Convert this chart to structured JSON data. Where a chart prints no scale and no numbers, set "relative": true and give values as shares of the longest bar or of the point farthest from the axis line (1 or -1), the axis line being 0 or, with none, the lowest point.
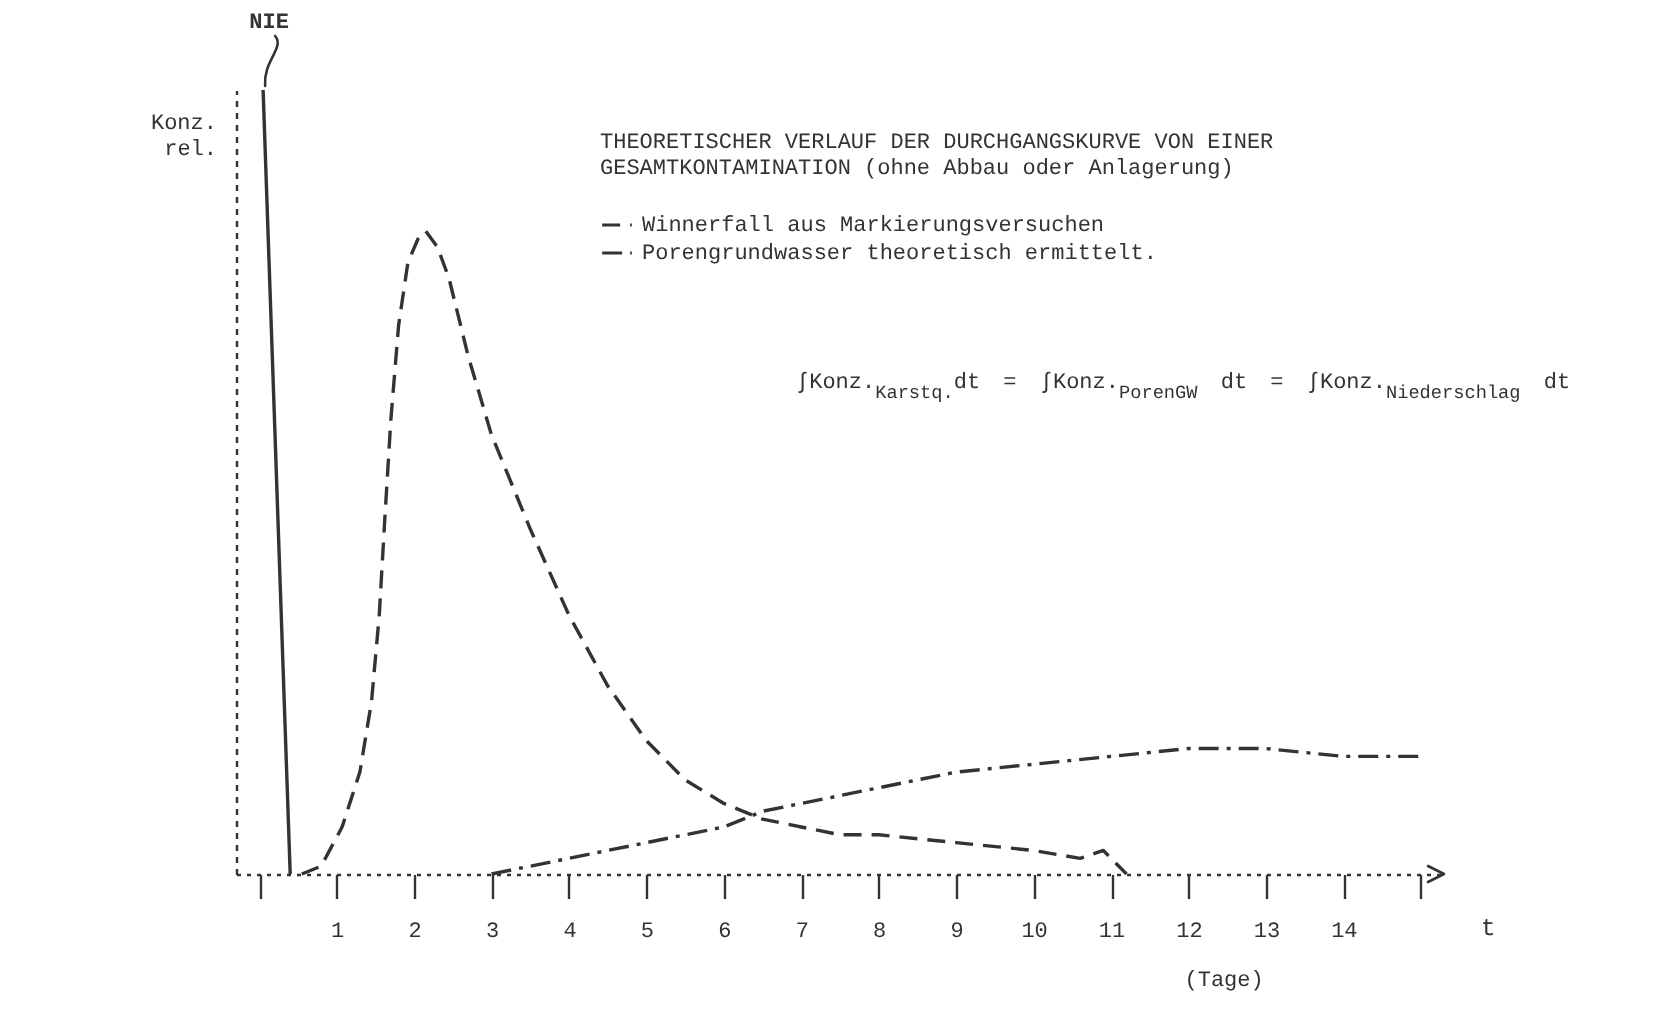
{
  "chart_data": {
    "type": "line",
    "relative": true,
    "title": "THEORETISCHER VERLAUF DER DURCHGANGSKURVE VON EINER GESAMTKONTAMINATION (ohne Abbau oder Anlagerung)",
    "xlabel": "t",
    "ylabel": "Konz. rel.",
    "annotations": [
      "∫Konz.$_{Karstq.}$dt = ∫Konz.$_{PorenGW}$ dt = ∫Konz.$_{Niederschlag}$ dt",
      "(Tage)"
    ],
    "xlim": [
      -0.3,
      15.3
    ],
    "xticks": [
      {
        "value": 0,
        "label": null
      },
      1,
      2,
      3,
      4,
      5,
      6,
      7,
      8,
      9,
      10,
      11,
      12,
      13,
      14,
      {
        "value": 15,
        "label": null
      }
    ],
    "legend": "top",
    "series": [
      {
        "name": "Winnerfall aus Markierungsversuchen",
        "color": "#333333",
        "line_style": "dashed",
        "x": [
          0.55,
          0.8,
          1.07,
          1.3,
          1.45,
          1.55,
          1.62,
          1.7,
          1.8,
          1.92,
          2.05,
          2.15,
          2.3,
          2.45,
          2.7,
          3.0,
          3.5,
          4.0,
          4.5,
          5.0,
          5.5,
          6.0,
          6.5,
          7.0,
          7.5,
          8.0,
          9.0,
          10.0,
          10.6,
          10.9,
          11.2
        ],
        "values": [
          0,
          0.01,
          0.06,
          0.13,
          0.22,
          0.33,
          0.45,
          0.58,
          0.7,
          0.78,
          0.81,
          0.82,
          0.8,
          0.76,
          0.66,
          0.56,
          0.44,
          0.33,
          0.24,
          0.17,
          0.12,
          0.09,
          0.07,
          0.06,
          0.05,
          0.05,
          0.04,
          0.03,
          0.02,
          0.03,
          0
        ]
      },
      {
        "name": "Porengrundwasser theoretisch ermittelt.",
        "color": "#333333",
        "line_style": "dashdot",
        "x": [
          3.0,
          3.5,
          4.0,
          4.5,
          5.0,
          5.5,
          6.0,
          6.5,
          7.0,
          7.5,
          8.0,
          9.0,
          10.0,
          11.0,
          12.0,
          12.5,
          13.0,
          14.0,
          15.0
        ],
        "values": [
          0,
          0.01,
          0.02,
          0.03,
          0.04,
          0.05,
          0.06,
          0.08,
          0.09,
          0.1,
          0.11,
          0.13,
          0.14,
          0.15,
          0.16,
          0.16,
          0.16,
          0.15,
          0.15
        ]
      },
      {
        "name": "NIE",
        "color": "#333333",
        "line_style": "solid",
        "x": [
          0.05,
          0.4
        ],
        "values": [
          1,
          0
        ]
      }
    ]
  }
}
